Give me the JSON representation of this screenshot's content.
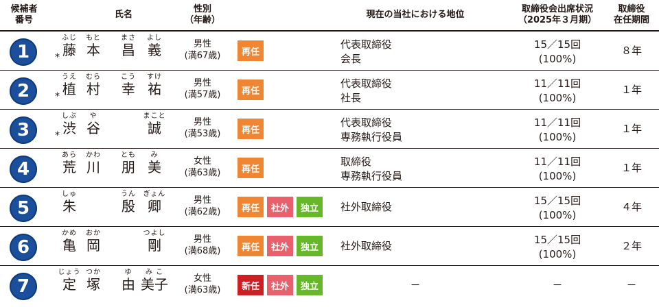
{
  "headers": {
    "number": "候補者\n番号",
    "name": "氏名",
    "gender": "性別\n（年齢）",
    "position": "現在の当社における地位",
    "attendance": "取締役会出席状況\n（2025年３月期）",
    "tenure": "取締役\n在任期間"
  },
  "colors": {
    "circle": "#1b4e9b",
    "reappoint": "#ef8633",
    "new": "#cd1f23",
    "outside": "#e8606b",
    "independent": "#67b72a"
  },
  "candidates": [
    {
      "number": "1",
      "star": "*",
      "n1": {
        "ruby": "ふじ",
        "kanji": "藤"
      },
      "n2": {
        "ruby": "もと",
        "kanji": "本"
      },
      "n3": {
        "ruby": "まさ",
        "kanji": "昌"
      },
      "n4": {
        "ruby": "よし",
        "kanji": "義"
      },
      "gender": "男性\n(満67歳)",
      "badge1": "再任",
      "badge2": "",
      "badge3": "",
      "position": "代表取締役\n会長",
      "attendance": "15／15回\n(100%)",
      "tenure": "８年"
    },
    {
      "number": "2",
      "star": "*",
      "n1": {
        "ruby": "うえ",
        "kanji": "植"
      },
      "n2": {
        "ruby": "むら",
        "kanji": "村"
      },
      "n3": {
        "ruby": "こう",
        "kanji": "幸"
      },
      "n4": {
        "ruby": "すけ",
        "kanji": "祐"
      },
      "gender": "男性\n(満57歳)",
      "badge1": "再任",
      "badge2": "",
      "badge3": "",
      "position": "代表取締役\n社長",
      "attendance": "11／11回\n(100%)",
      "tenure": "１年"
    },
    {
      "number": "3",
      "star": "*",
      "n1": {
        "ruby": "しぶ",
        "kanji": "渋"
      },
      "n2": {
        "ruby": "や",
        "kanji": "谷"
      },
      "n3": {
        "ruby": "",
        "kanji": ""
      },
      "n4": {
        "ruby": "まこと",
        "kanji": "誠"
      },
      "gender": "男性\n(満53歳)",
      "badge1": "再任",
      "badge2": "",
      "badge3": "",
      "position": "代表取締役\n専務執行役員",
      "attendance": "11／11回\n(100%)",
      "tenure": "１年"
    },
    {
      "number": "4",
      "star": "",
      "n1": {
        "ruby": "あら",
        "kanji": "荒"
      },
      "n2": {
        "ruby": "かわ",
        "kanji": "川"
      },
      "n3": {
        "ruby": "とも",
        "kanji": "朋"
      },
      "n4": {
        "ruby": "み",
        "kanji": "美"
      },
      "gender": "女性\n(満63歳)",
      "badge1": "再任",
      "badge2": "",
      "badge3": "",
      "position": "取締役\n専務執行役員",
      "attendance": "11／11回\n(100%)",
      "tenure": "１年"
    },
    {
      "number": "5",
      "star": "",
      "n1": {
        "ruby": "しゅ",
        "kanji": "朱"
      },
      "n2": {
        "ruby": "",
        "kanji": ""
      },
      "n3": {
        "ruby": "うん",
        "kanji": "殷"
      },
      "n4": {
        "ruby": "ぎょん",
        "kanji": "卿"
      },
      "gender": "男性\n(満62歳)",
      "badge1": "再任",
      "badge2": "社外",
      "badge3": "独立",
      "position": "社外取締役",
      "attendance": "15／15回\n(100%)",
      "tenure": "４年"
    },
    {
      "number": "6",
      "star": "",
      "n1": {
        "ruby": "かめ",
        "kanji": "亀"
      },
      "n2": {
        "ruby": "おか",
        "kanji": "岡"
      },
      "n3": {
        "ruby": "",
        "kanji": ""
      },
      "n4": {
        "ruby": "つよし",
        "kanji": "剛"
      },
      "gender": "男性\n(満68歳)",
      "badge1": "再任",
      "badge2": "社外",
      "badge3": "独立",
      "position": "社外取締役",
      "attendance": "15／15回\n(100%)",
      "tenure": "２年"
    },
    {
      "number": "7",
      "star": "",
      "n1": {
        "ruby": "じょう",
        "kanji": "定"
      },
      "n2": {
        "ruby": "つか",
        "kanji": "塚"
      },
      "n3": {
        "ruby": "ゆ",
        "kanji": "由"
      },
      "n4": {
        "ruby": "み こ",
        "kanji": "美子"
      },
      "gender": "女性\n(満63歳)",
      "badge1": "新任",
      "badge2": "社外",
      "badge3": "独立",
      "position": "－",
      "attendance": "－",
      "tenure": "－"
    }
  ]
}
